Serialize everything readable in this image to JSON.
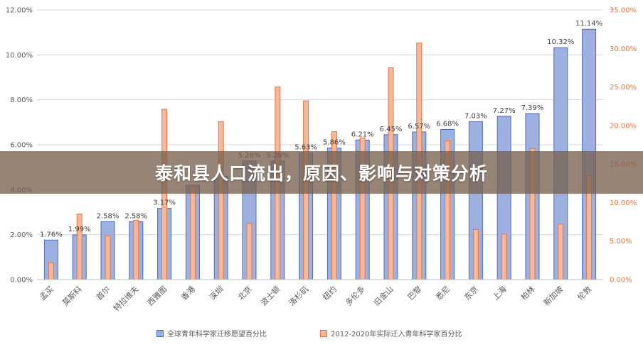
{
  "banner": {
    "title": "泰和县人口流出，原因、影响与对策分析"
  },
  "colors": {
    "blue_fill": "#9db0e0",
    "blue_stroke": "#4a6bbf",
    "orange_fill": "#f6b89a",
    "orange_stroke": "#e9743c",
    "grid": "#d9d9d9",
    "left_axis": "#595959",
    "right_axis": "#e9743c"
  },
  "chart_data": {
    "type": "bar",
    "title": "",
    "categories": [
      "孟买",
      "莫斯科",
      "首尔",
      "特拉维夫",
      "西雅图",
      "香港",
      "深圳",
      "北京",
      "波士顿",
      "洛杉矶",
      "纽约",
      "多伦多",
      "旧金山",
      "巴黎",
      "悉尼",
      "东京",
      "上海",
      "柏林",
      "新加坡",
      "伦敦"
    ],
    "series": [
      {
        "name": "全球青年科学家迁移愿望百分比",
        "axis": "left",
        "values": [
          1.76,
          1.99,
          2.58,
          2.58,
          3.17,
          4.2,
          4.6,
          5.28,
          5.28,
          5.63,
          5.86,
          6.21,
          6.45,
          6.57,
          6.68,
          7.03,
          7.27,
          7.39,
          10.32,
          11.14
        ]
      },
      {
        "name": "2012-2020年实际迁入青年科学家百分比",
        "axis": "right",
        "values": [
          2.2,
          8.5,
          5.7,
          7.7,
          22.1,
          12.0,
          20.5,
          7.3,
          25.0,
          23.2,
          19.2,
          18.4,
          27.5,
          30.7,
          18.0,
          6.5,
          5.9,
          17.0,
          7.2,
          13.5
        ]
      }
    ],
    "data_labels": [
      "1.76%",
      "1.99%",
      "2.58%",
      "2.58%",
      "3.17%",
      "",
      "",
      "5.28%",
      "5.28%",
      "5.63%",
      "5.86%",
      "6.21%",
      "6.45%",
      "6.57%",
      "6.68%",
      "7.03%",
      "7.27%",
      "7.39%",
      "10.32%",
      "11.14%"
    ],
    "y_left": {
      "min": 0,
      "max": 12,
      "ticks": [
        "0.00%",
        "2.00%",
        "4.00%",
        "6.00%",
        "8.00%",
        "10.00%",
        "12.00%"
      ]
    },
    "y_right": {
      "min": 0,
      "max": 35,
      "ticks": [
        "0.00%",
        "5.00%",
        "10.00%",
        "15.00%",
        "20.00%",
        "25.00%",
        "30.00%",
        "35.00%"
      ]
    },
    "grid": true,
    "legend_position": "bottom"
  }
}
